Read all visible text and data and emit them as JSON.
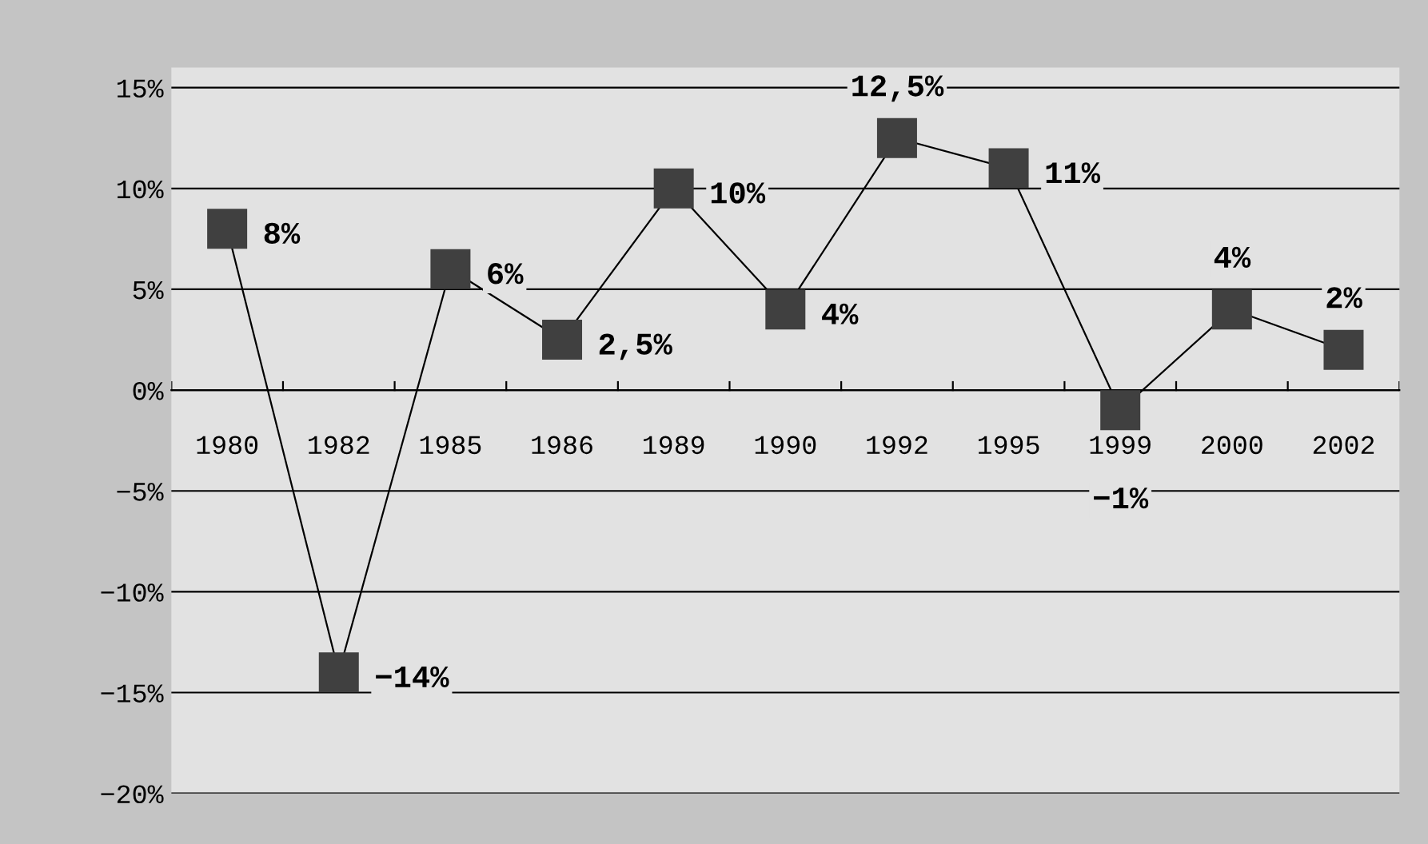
{
  "chart_data": {
    "type": "line",
    "categories": [
      "1980",
      "1982",
      "1985",
      "1986",
      "1989",
      "1990",
      "1992",
      "1995",
      "1999",
      "2000",
      "2002"
    ],
    "series": [
      {
        "color": "#404040",
        "values": [
          8,
          -14,
          6,
          2.5,
          10,
          4,
          12.5,
          11,
          -1,
          4,
          2
        ],
        "value_labels": [
          "8%",
          "−14%",
          "6%",
          "2,5%",
          "10%",
          "4%",
          "12,5%",
          "11%",
          "−1%",
          "4%",
          "2%"
        ]
      }
    ],
    "ylim": [
      -20,
      16
    ],
    "yticks": [
      {
        "value": -20,
        "label": "−20%"
      },
      {
        "value": -15,
        "label": "−15%"
      },
      {
        "value": -10,
        "label": "−10%"
      },
      {
        "value": -5,
        "label": "−5%"
      },
      {
        "value": 0,
        "label": "0%"
      },
      {
        "value": 5,
        "label": "5%"
      },
      {
        "value": 10,
        "label": "10%"
      },
      {
        "value": 15,
        "label": "15%"
      }
    ],
    "grid": "y",
    "marker": "square",
    "line_style": "solid",
    "legend": false
  }
}
